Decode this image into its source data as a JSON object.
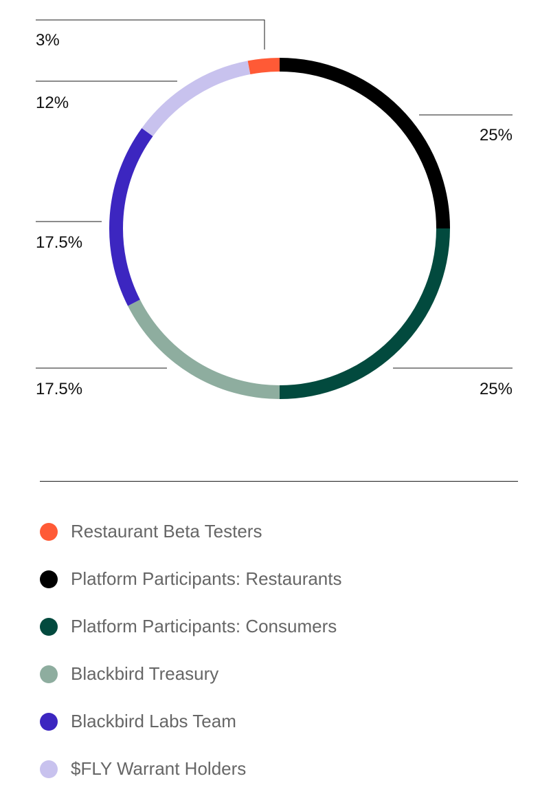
{
  "chart_data": {
    "type": "pie",
    "style": "donut-ring",
    "slices": [
      {
        "name": "Restaurant Beta Testers",
        "value": 3,
        "label": "3%",
        "color": "#ff5a36"
      },
      {
        "name": "Platform Participants: Restaurants",
        "value": 25,
        "label": "25%",
        "color": "#000000"
      },
      {
        "name": "Platform Participants: Consumers",
        "value": 25,
        "label": "25%",
        "color": "#024a3e"
      },
      {
        "name": "Blackbird Treasury",
        "value": 17.5,
        "label": "17.5%",
        "color": "#8ead9f"
      },
      {
        "name": "Blackbird Labs Team",
        "value": 17.5,
        "label": "17.5%",
        "color": "#3c26c0"
      },
      {
        "name": "$FLY Warrant Holders",
        "value": 12,
        "label": "12%",
        "color": "#c8c2ee"
      }
    ],
    "legend_placement": "bottom"
  }
}
